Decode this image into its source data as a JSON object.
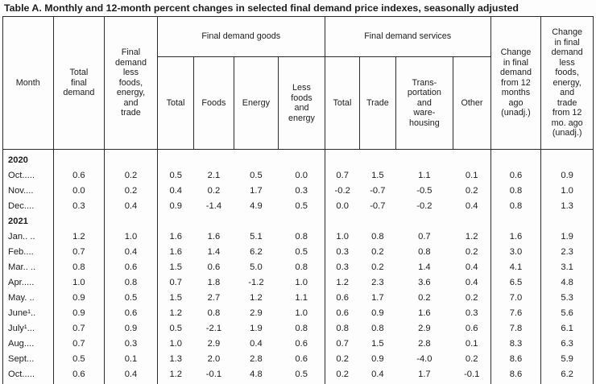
{
  "title": "Table A. Monthly and 12-month percent changes in selected final demand price indexes, seasonally adjusted",
  "table": {
    "columns": {
      "month": "Month",
      "total_final_demand": "Total\nfinal\ndemand",
      "fd_less_fet": "Final\ndemand\nless\nfoods,\nenergy,\nand\ntrade",
      "goods_group": "Final demand goods",
      "goods": [
        "Total",
        "Foods",
        "Energy",
        "Less\nfoods\nand\nenergy"
      ],
      "services_group": "Final demand services",
      "services": [
        "Total",
        "Trade",
        "Trans-\nportation\nand\nware-\nhousing",
        "Other"
      ],
      "change_12mo": "Change\nin final\ndemand\nfrom 12\nmonths\nago\n(unadj.)",
      "change_12mo_less": "Change\nin final\ndemand\nless\nfoods,\nenergy,\nand\ntrade\nfrom 12\nmo. ago\n(unadj.)"
    },
    "rows": [
      {
        "type": "year",
        "label": "2020"
      },
      {
        "type": "data",
        "label": "Oct.....",
        "values": [
          "0.6",
          "0.2",
          "0.5",
          "2.1",
          "0.5",
          "0.0",
          "0.7",
          "1.5",
          "1.1",
          "0.1",
          "0.6",
          "0.9"
        ]
      },
      {
        "type": "data",
        "label": "Nov....",
        "values": [
          "0.0",
          "0.2",
          "0.4",
          "0.2",
          "1.7",
          "0.3",
          "-0.2",
          "-0.7",
          "-0.5",
          "0.2",
          "0.8",
          "1.0"
        ]
      },
      {
        "type": "data",
        "label": "Dec....",
        "values": [
          "0.3",
          "0.4",
          "0.9",
          "-1.4",
          "4.9",
          "0.5",
          "0.0",
          "-0.7",
          "-0.2",
          "0.4",
          "0.8",
          "1.3"
        ]
      },
      {
        "type": "year",
        "label": "2021"
      },
      {
        "type": "data",
        "label": "Jan.. ..",
        "values": [
          "1.2",
          "1.0",
          "1.6",
          "1.6",
          "5.1",
          "0.8",
          "1.0",
          "0.8",
          "0.7",
          "1.2",
          "1.6",
          "1.9"
        ]
      },
      {
        "type": "data",
        "label": "Feb....",
        "values": [
          "0.7",
          "0.4",
          "1.6",
          "1.4",
          "6.2",
          "0.5",
          "0.3",
          "0.2",
          "0.8",
          "0.2",
          "3.0",
          "2.3"
        ]
      },
      {
        "type": "data",
        "label": "Mar.. ..",
        "values": [
          "0.8",
          "0.6",
          "1.5",
          "0.6",
          "5.0",
          "0.8",
          "0.3",
          "0.2",
          "1.4",
          "0.4",
          "4.1",
          "3.1"
        ]
      },
      {
        "type": "data",
        "label": "Apr.....",
        "values": [
          "1.0",
          "0.8",
          "0.7",
          "1.8",
          "-1.2",
          "1.0",
          "1.2",
          "2.3",
          "3.6",
          "0.4",
          "6.5",
          "4.8"
        ]
      },
      {
        "type": "data",
        "label": "May. ..",
        "values": [
          "0.9",
          "0.5",
          "1.5",
          "2.7",
          "1.2",
          "1.1",
          "0.6",
          "1.7",
          "0.2",
          "0.2",
          "7.0",
          "5.3"
        ]
      },
      {
        "type": "data",
        "label": "June¹..",
        "values": [
          "0.9",
          "0.6",
          "1.2",
          "0.8",
          "2.9",
          "1.0",
          "0.6",
          "0.9",
          "1.6",
          "0.3",
          "7.6",
          "5.6"
        ]
      },
      {
        "type": "data",
        "label": "July¹...",
        "values": [
          "0.7",
          "0.9",
          "0.5",
          "-2.1",
          "1.9",
          "0.8",
          "0.8",
          "0.8",
          "2.9",
          "0.6",
          "7.8",
          "6.1"
        ]
      },
      {
        "type": "data",
        "label": "Aug....",
        "values": [
          "0.7",
          "0.3",
          "1.0",
          "2.9",
          "0.4",
          "0.6",
          "0.7",
          "1.5",
          "2.8",
          "0.1",
          "8.3",
          "6.3"
        ]
      },
      {
        "type": "data",
        "label": "Sept...",
        "values": [
          "0.5",
          "0.1",
          "1.3",
          "2.0",
          "2.8",
          "0.6",
          "0.2",
          "0.9",
          "-4.0",
          "0.2",
          "8.6",
          "5.9"
        ]
      },
      {
        "type": "data",
        "label": "Oct.....",
        "values": [
          "0.6",
          "0.4",
          "1.2",
          "-0.1",
          "4.8",
          "0.5",
          "0.2",
          "0.4",
          "1.7",
          "-0.1",
          "8.6",
          "6.2"
        ]
      }
    ]
  }
}
